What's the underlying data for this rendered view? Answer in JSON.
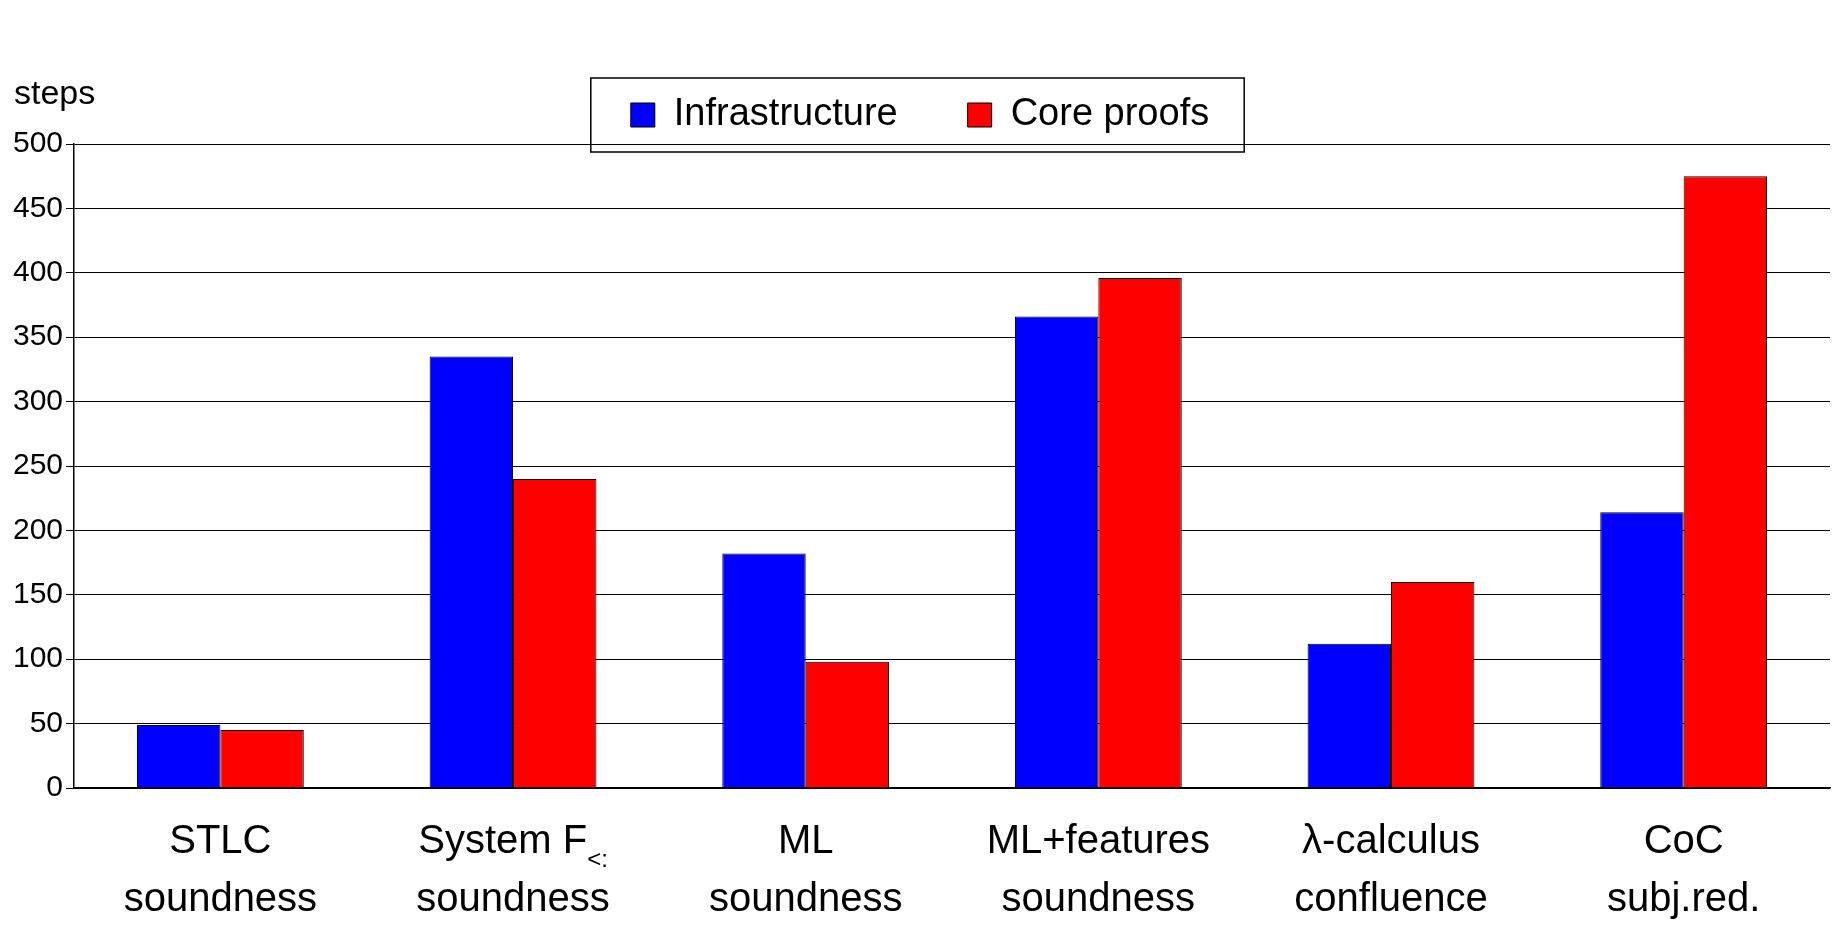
{
  "chart_data": {
    "type": "bar",
    "ylabel": "steps",
    "categories": [
      "STLC\nsoundness",
      "System F$_{<:}$\nsoundness",
      "ML\nsoundness",
      "ML+features\nsoundness",
      "λ-calculus\nconfluence",
      "CoC\nsubj.red."
    ],
    "series": [
      {
        "name": "Infrastructure",
        "color": "#0000ff",
        "values": [
          49,
          335,
          182,
          366,
          112,
          214
        ]
      },
      {
        "name": "Core proofs",
        "color": "#ff0000",
        "values": [
          45,
          240,
          98,
          396,
          160,
          475
        ]
      }
    ],
    "ylim": [
      0,
      500
    ],
    "yticks": [
      0,
      50,
      100,
      150,
      200,
      250,
      300,
      350,
      400,
      450,
      500
    ],
    "grid": "y",
    "legend": "top"
  }
}
